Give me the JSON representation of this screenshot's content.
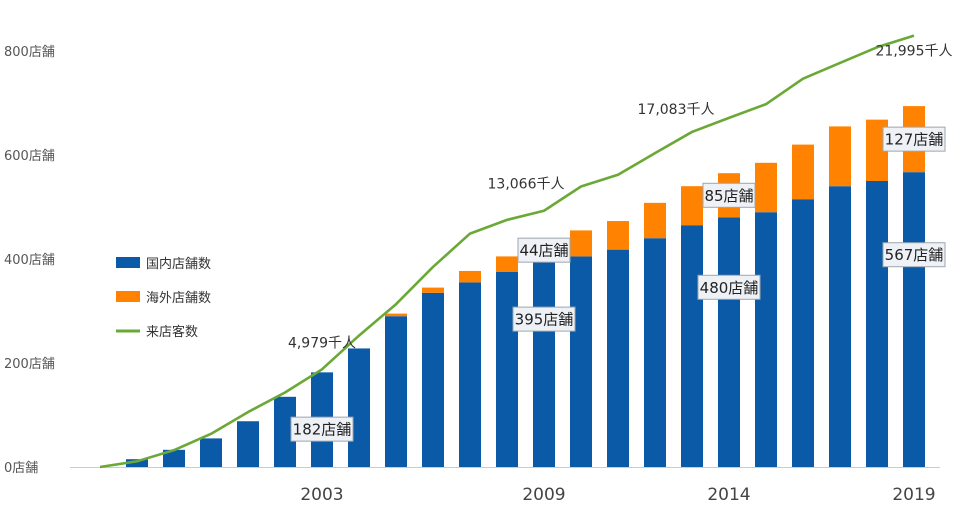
{
  "chart_data": {
    "type": "bar",
    "stacked": true,
    "title": "",
    "xlabel": "",
    "ylabel": "",
    "ylim": [
      0,
      800
    ],
    "y_ticks": [
      "0店舗",
      "200店舗",
      "400店舗",
      "600店舗",
      "800店舗"
    ],
    "x_tick_labels": [
      "2003",
      "2009",
      "2014",
      "2019"
    ],
    "categories": [
      "1997",
      "1998",
      "1999",
      "2000",
      "2001",
      "2002",
      "2003",
      "2004",
      "2005",
      "2006",
      "2007",
      "2008",
      "2009",
      "2010",
      "2011",
      "2012",
      "2013",
      "2014",
      "2015",
      "2016",
      "2017",
      "2018",
      "2019"
    ],
    "series": [
      {
        "name": "国内店舗数",
        "color": "#0b5aa8",
        "values": [
          0,
          15,
          33,
          55,
          88,
          135,
          182,
          228,
          290,
          335,
          355,
          375,
          395,
          405,
          418,
          440,
          465,
          480,
          490,
          515,
          540,
          550,
          567
        ]
      },
      {
        "name": "海外店舗数",
        "color": "#ff8200",
        "values": [
          0,
          0,
          0,
          0,
          0,
          0,
          0,
          0,
          5,
          10,
          22,
          30,
          44,
          50,
          55,
          68,
          75,
          85,
          95,
          105,
          115,
          118,
          127
        ]
      },
      {
        "name": "来店客数",
        "type": "line",
        "color": "#6aa936",
        "unit": "千人",
        "ylim": [
          0,
          23300
        ],
        "values": [
          0,
          290,
          860,
          1690,
          2800,
          3800,
          4979,
          6700,
          8300,
          10200,
          11900,
          12600,
          13066,
          14300,
          14900,
          16000,
          17083,
          17800,
          18500,
          19800,
          20600,
          21400,
          21995
        ]
      }
    ],
    "line_labels": [
      {
        "category": "2003",
        "text": "4,979千人"
      },
      {
        "category": "2009",
        "text": "13,066千人"
      },
      {
        "category": "2013",
        "text": "17,083千人"
      },
      {
        "category": "2019",
        "text": "21,995千人"
      }
    ],
    "callouts": [
      {
        "category": "2003",
        "series": "国内店舗数",
        "text": "182店舗"
      },
      {
        "category": "2009",
        "series": "海外店舗数",
        "text": "44店舗"
      },
      {
        "category": "2009",
        "series": "国内店舗数",
        "text": "395店舗"
      },
      {
        "category": "2014",
        "series": "海外店舗数",
        "text": "85店舗"
      },
      {
        "category": "2014",
        "series": "国内店舗数",
        "text": "480店舗"
      },
      {
        "category": "2019",
        "series": "海外店舗数",
        "text": "127店舗"
      },
      {
        "category": "2019",
        "series": "国内店舗数",
        "text": "567店舗"
      }
    ],
    "legend": {
      "placement": "left",
      "items": [
        {
          "label": "国内店舗数",
          "color": "#0b5aa8",
          "kind": "square"
        },
        {
          "label": "海外店舗数",
          "color": "#ff8200",
          "kind": "square"
        },
        {
          "label": "来店客数",
          "color": "#6aa936",
          "kind": "line"
        }
      ]
    }
  }
}
